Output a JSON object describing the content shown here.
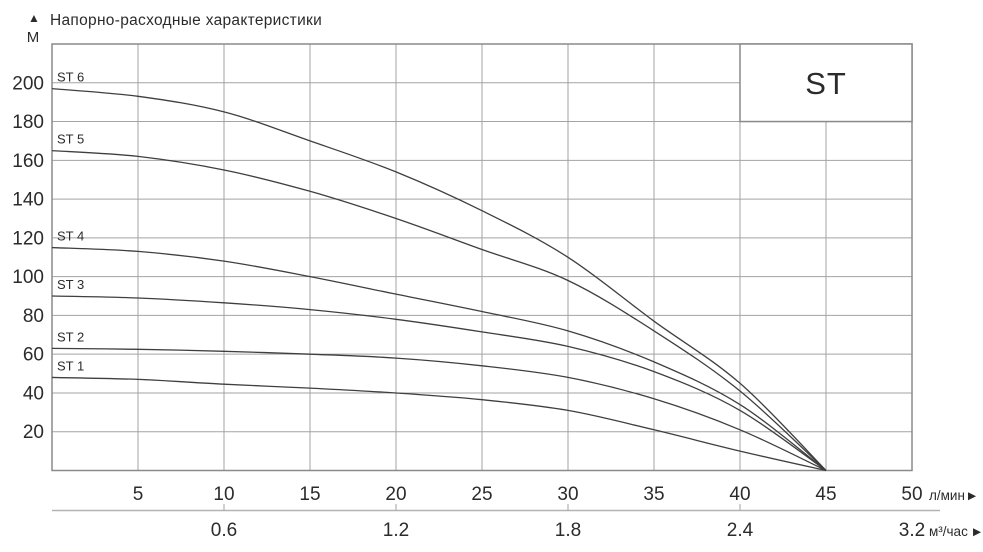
{
  "header": {
    "marker": "▲",
    "title": "Напорно-расходные характеристики",
    "y_unit": "М"
  },
  "units": {
    "flow_lmin": "л/мин",
    "flow_m3h": "м³/час",
    "arrow": "▶"
  },
  "colors": {
    "background": "#ffffff",
    "grid": "#a3a3a3",
    "border": "#8a8a8a",
    "secondary_axis": "#b3b3b3",
    "curve": "#3f3f3f",
    "text": "#2b2b2b",
    "legend_fill": "#ffffff"
  },
  "chart_data": {
    "type": "line",
    "title": "Напорно-расходные характеристики",
    "y_axis": {
      "unit": "М",
      "ticks": [
        20,
        40,
        60,
        80,
        100,
        120,
        140,
        160,
        180,
        200
      ],
      "range": [
        0,
        220
      ],
      "gridlines": true
    },
    "x_axis": {
      "unit": "л/мин",
      "ticks": [
        5,
        10,
        15,
        20,
        25,
        30,
        35,
        40,
        45,
        50
      ],
      "range": [
        0,
        50
      ],
      "gridlines": true
    },
    "x_axis_secondary": {
      "unit": "м³/час",
      "labels": [
        {
          "text": "0.6",
          "at_lmin": 10
        },
        {
          "text": "1.2",
          "at_lmin": 20
        },
        {
          "text": "1.8",
          "at_lmin": 30
        },
        {
          "text": "2.4",
          "at_lmin": 40
        },
        {
          "text": "3.2",
          "at_lmin": 50
        }
      ],
      "tick_marks_at_lmin": [
        10,
        20,
        30,
        40
      ]
    },
    "legend": {
      "label": "ST",
      "position": "top-right",
      "grid_cell": {
        "x_from": 40,
        "x_to": 50,
        "y_from": 180,
        "y_to": 220
      }
    },
    "convergence_point": {
      "x": 45,
      "y": 0
    },
    "series": [
      {
        "name": "ST 1",
        "x": [
          0,
          5,
          10,
          15,
          20,
          25,
          30,
          35,
          40,
          45
        ],
        "y": [
          48,
          47,
          44.5,
          42.5,
          40,
          36.5,
          31,
          21,
          10,
          0
        ]
      },
      {
        "name": "ST 2",
        "x": [
          0,
          5,
          10,
          15,
          20,
          25,
          30,
          35,
          40,
          45
        ],
        "y": [
          63,
          62.5,
          61.5,
          60,
          58,
          54,
          48,
          37,
          21,
          0
        ]
      },
      {
        "name": "ST 3",
        "x": [
          0,
          5,
          10,
          15,
          20,
          25,
          30,
          35,
          40,
          45
        ],
        "y": [
          90,
          89,
          86.5,
          83,
          78,
          71.5,
          64,
          51,
          31,
          0
        ]
      },
      {
        "name": "ST 4",
        "x": [
          0,
          5,
          10,
          15,
          20,
          25,
          30,
          35,
          40,
          45
        ],
        "y": [
          115,
          113,
          108,
          100,
          91,
          82,
          72,
          56,
          34,
          0
        ]
      },
      {
        "name": "ST 5",
        "x": [
          0,
          5,
          10,
          15,
          20,
          25,
          30,
          35,
          40,
          45
        ],
        "y": [
          165,
          162,
          155,
          144,
          130,
          114,
          98,
          72,
          41,
          0
        ]
      },
      {
        "name": "ST 6",
        "x": [
          0,
          5,
          10,
          15,
          20,
          25,
          30,
          35,
          40,
          45
        ],
        "y": [
          197,
          193,
          185,
          170,
          154,
          134,
          110,
          77,
          45,
          0
        ]
      }
    ]
  }
}
